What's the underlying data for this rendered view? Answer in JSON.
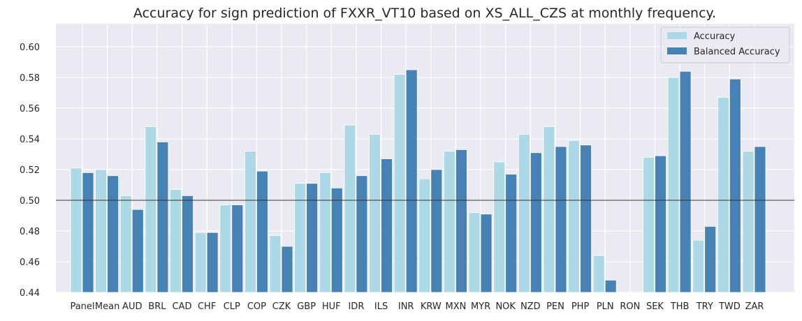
{
  "chart_data": {
    "type": "bar",
    "title": "Accuracy for sign prediction of FXXR_VT10 based on XS_ALL_CZS at monthly frequency.",
    "xlabel": "",
    "ylabel": "",
    "ylim": [
      0.44,
      0.615
    ],
    "yticks": [
      "0.44",
      "0.46",
      "0.48",
      "0.50",
      "0.52",
      "0.54",
      "0.56",
      "0.58",
      "0.60"
    ],
    "grid": true,
    "reference_line": 0.5,
    "legend_position": "top-right",
    "categories": [
      "Panel",
      "Mean",
      "AUD",
      "BRL",
      "CAD",
      "CHF",
      "CLP",
      "COP",
      "CZK",
      "GBP",
      "HUF",
      "IDR",
      "ILS",
      "INR",
      "KRW",
      "MXN",
      "MYR",
      "NOK",
      "NZD",
      "PEN",
      "PHP",
      "PLN",
      "RON",
      "SEK",
      "THB",
      "TRY",
      "TWD",
      "ZAR"
    ],
    "series": [
      {
        "name": "Accuracy",
        "color": "#add8e6",
        "values": [
          0.521,
          0.52,
          0.503,
          0.548,
          0.507,
          0.479,
          0.497,
          0.532,
          0.477,
          0.511,
          0.518,
          0.549,
          0.543,
          0.582,
          0.514,
          0.532,
          0.492,
          0.525,
          0.543,
          0.548,
          0.539,
          0.464,
          null,
          0.528,
          0.58,
          0.474,
          0.567,
          0.532
        ]
      },
      {
        "name": "Balanced Accuracy",
        "color": "#4682b4",
        "values": [
          0.518,
          0.516,
          0.494,
          0.538,
          0.503,
          0.479,
          0.497,
          0.519,
          0.47,
          0.511,
          0.508,
          0.516,
          0.527,
          0.585,
          0.52,
          0.533,
          0.491,
          0.517,
          0.531,
          0.535,
          0.536,
          0.448,
          null,
          0.529,
          0.584,
          0.483,
          0.579,
          0.535
        ]
      }
    ]
  }
}
